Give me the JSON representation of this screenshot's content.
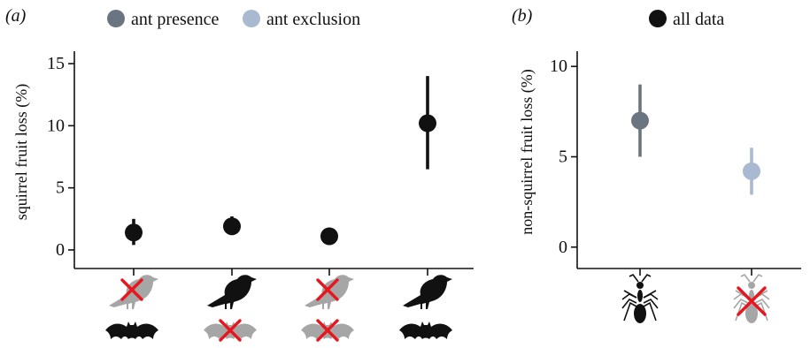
{
  "panels": [
    {
      "label": "(a)"
    },
    {
      "label": "(b)"
    }
  ],
  "legend": {
    "a": [
      {
        "label": "ant presence",
        "color": "#6b7582"
      },
      {
        "label": "ant exclusion",
        "color": "#a9b9cf"
      }
    ],
    "b": [
      {
        "label": "all data",
        "color": "#111111"
      }
    ]
  },
  "icons": {
    "a": [
      {
        "bird": "excluded",
        "bat": "present"
      },
      {
        "bird": "present",
        "bat": "excluded"
      },
      {
        "bird": "excluded",
        "bat": "excluded"
      },
      {
        "bird": "present",
        "bat": "present"
      }
    ],
    "b": [
      {
        "ant": "present"
      },
      {
        "ant": "excluded"
      }
    ]
  },
  "chart_data": [
    {
      "type": "scatter",
      "panel": "a",
      "ylabel": "squirrel fruit loss (%)",
      "ylim": [
        -0.5,
        15.5
      ],
      "yticks": [
        0,
        5,
        10,
        15
      ],
      "x": [
        1,
        2,
        3,
        4
      ],
      "series": [
        {
          "color": "#111111",
          "values": [
            1.4,
            1.9,
            1.1,
            10.2
          ],
          "lower": [
            0.4,
            1.2,
            0.4,
            6.5
          ],
          "upper": [
            2.5,
            2.7,
            1.8,
            14.0
          ]
        }
      ]
    },
    {
      "type": "scatter",
      "panel": "b",
      "ylabel": "non-squirrel fruit loss (%)",
      "ylim": [
        -0.5,
        10.5
      ],
      "yticks": [
        0,
        5,
        10
      ],
      "x": [
        1,
        2
      ],
      "series": [
        {
          "name": "ant presence",
          "color": "#6b7582",
          "values": [
            7.0
          ],
          "lower": [
            5.0
          ],
          "upper": [
            9.0
          ]
        },
        {
          "name": "ant exclusion",
          "color": "#a9b9cf",
          "values": [
            4.2
          ],
          "lower": [
            2.9
          ],
          "upper": [
            5.5
          ]
        }
      ]
    }
  ]
}
